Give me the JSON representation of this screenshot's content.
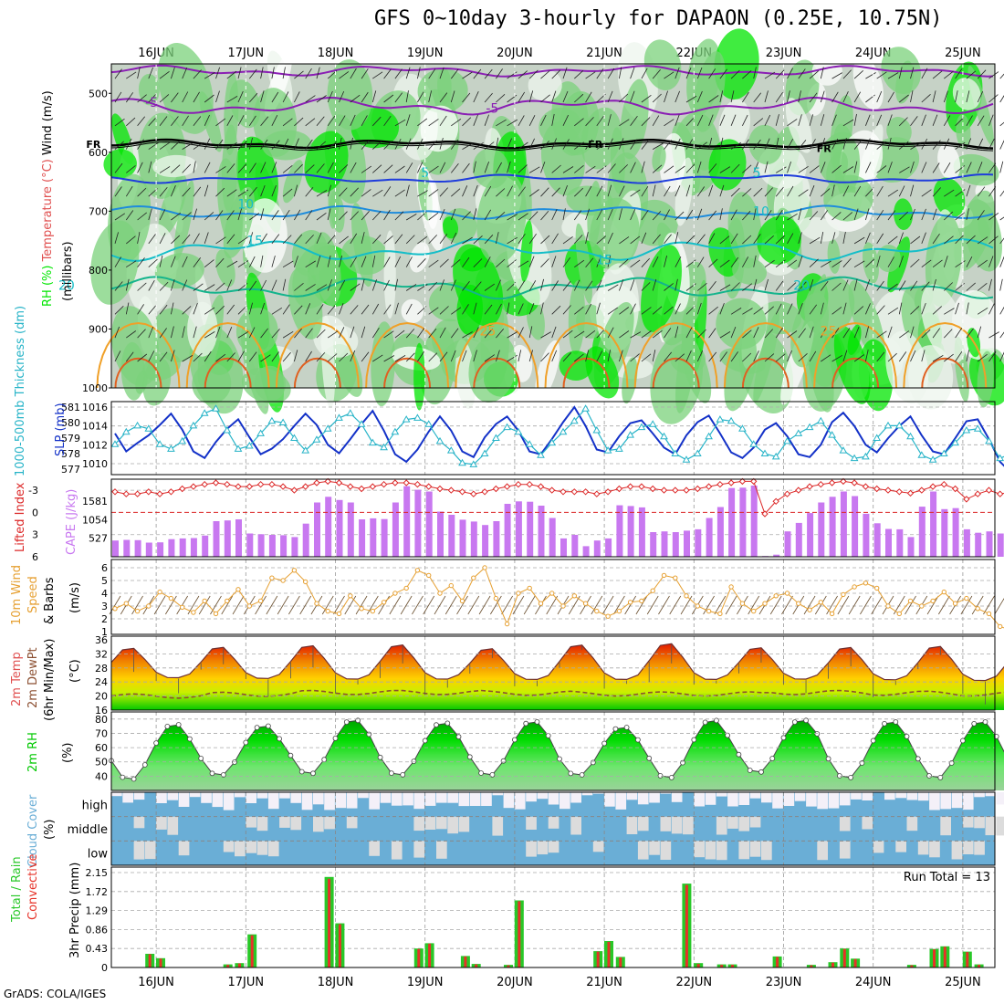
{
  "title": "GFS 0~10day 3-hourly for DAPAON (0.25E, 10.75N)",
  "credit": "GrADS: COLA/IGES",
  "colors": {
    "rh_dark": "#00e600",
    "rh_mid": "#7bd27b",
    "rh_light": "#c6d2c6",
    "rh_pale": "#eef5ee",
    "temp_purple": "#8a1eb4",
    "temp_blue": "#1e3cdc",
    "temp_lightblue": "#1e8cdc",
    "temp_cyan": "#14bec8",
    "temp_teal": "#14b48c",
    "temp_orange": "#f0a028",
    "slp": "#1432c8",
    "thickness": "#28b4c8",
    "lifted": "#dc2828",
    "cape": "#c878f0",
    "wind_speed": "#e6a032",
    "temp_band": "#f05a00",
    "dew": "#8c5032",
    "rh_fill": "#00c800",
    "cloud": "#6aaed6",
    "cloud_bg": "#dcdcdc",
    "precip_total": "#28c828",
    "precip_conv": "#e63228"
  },
  "chart_data": [
    {
      "panel": "vertical-profile",
      "type": "heatmap",
      "ylabel_parts": [
        "RH (%)",
        "Temperature (°C)",
        "Wind (m/s)"
      ],
      "ylabel_units": "(millibars)",
      "y_ticks": [
        "500",
        "600",
        "700",
        "800",
        "900",
        "1000"
      ],
      "contour_labels": [
        {
          "text": "-5",
          "day": 15.95,
          "p": 515
        },
        {
          "text": "-5",
          "day": 19.75,
          "p": 525
        },
        {
          "text": "FR",
          "day": 15.3,
          "p": 585
        },
        {
          "text": "FR",
          "day": 20.9,
          "p": 585
        },
        {
          "text": "FR",
          "day": 23.45,
          "p": 592
        },
        {
          "text": "5",
          "day": 19.0,
          "p": 634
        },
        {
          "text": "5",
          "day": 22.7,
          "p": 634
        },
        {
          "text": "10",
          "day": 17.0,
          "p": 688
        },
        {
          "text": "10",
          "day": 22.75,
          "p": 700
        },
        {
          "text": "15",
          "day": 17.1,
          "p": 750
        },
        {
          "text": "15",
          "day": 21.0,
          "p": 782
        },
        {
          "text": "20",
          "day": 15.0,
          "p": 826
        },
        {
          "text": "20",
          "day": 23.2,
          "p": 826
        },
        {
          "text": "25",
          "day": 19.7,
          "p": 903
        },
        {
          "text": "25",
          "day": 23.5,
          "p": 903
        }
      ]
    },
    {
      "panel": "slp-thickness",
      "type": "line",
      "ylabel_left": "1000-500mb Thickness (dm)",
      "ylabel_right": "SLP (mb)",
      "y_ticks_left": [
        "581",
        "580",
        "579",
        "578",
        "577"
      ],
      "y_ticks_right": [
        "1016",
        "1014",
        "1012",
        "1010"
      ],
      "series": [
        {
          "name": "SLP (mb)",
          "values": [
            1013.2,
            1011.3,
            1012.2,
            1013.0,
            1014.1,
            1015.3,
            1013.6,
            1011.3,
            1010.6,
            1012.3,
            1013.7,
            1014.7,
            1012.8,
            1011.0,
            1011.6,
            1012.6,
            1014.0,
            1015.3,
            1014.1,
            1012.0,
            1011.1,
            1012.6,
            1014.2,
            1015.6,
            1013.5,
            1011.0,
            1010.2,
            1011.5,
            1013.4,
            1015.0,
            1013.5,
            1011.3,
            1010.7,
            1012.8,
            1014.2,
            1015.0,
            1013.5,
            1011.3,
            1011.0,
            1012.6,
            1014.4,
            1016.0,
            1014.0,
            1011.5,
            1011.2,
            1012.9,
            1014.3,
            1014.6,
            1013.2,
            1011.7,
            1011.0,
            1013.0,
            1014.4,
            1015.1,
            1013.2,
            1011.2,
            1010.6,
            1011.7,
            1013.6,
            1014.3,
            1012.9,
            1011.0,
            1010.7,
            1012.0,
            1014.4,
            1015.4,
            1014.0,
            1012.0,
            1011.2,
            1012.7,
            1014.0,
            1015.0,
            1013.0,
            1011.3,
            1011.0,
            1012.7,
            1014.5,
            1014.7,
            1012.6,
            1010.2,
            1009.0,
            1010.4,
            1011.8
          ]
        },
        {
          "name": "1000-500mb Thickness (dm)",
          "values": [
            578.6,
            579.4,
            579.8,
            579.6,
            578.6,
            578.3,
            578.8,
            579.8,
            580.6,
            580.9,
            579.5,
            578.3,
            578.5,
            579.3,
            580.1,
            580.0,
            579.0,
            578.2,
            578.9,
            579.6,
            580.3,
            580.6,
            579.9,
            578.7,
            578.4,
            579.4,
            580.2,
            580.3,
            579.9,
            578.8,
            578.2,
            577.4,
            577.3,
            578.0,
            579.0,
            579.7,
            579.4,
            578.6,
            577.9,
            578.7,
            579.4,
            580.1,
            580.9,
            579.5,
            578.2,
            578.3,
            579.2,
            579.7,
            579.9,
            579.1,
            578.0,
            577.6,
            578.0,
            579.1,
            580.2,
            580.1,
            579.6,
            578.6,
            578.0,
            577.8,
            578.8,
            579.3,
            579.7,
            580.1,
            579.2,
            578.2,
            577.7,
            577.8,
            579.0,
            579.8,
            579.8,
            579.1,
            577.9,
            577.6,
            578.0,
            578.7,
            579.5,
            579.6,
            578.8,
            577.7,
            578.0,
            577.7,
            577.3
          ]
        }
      ]
    },
    {
      "panel": "cape-lifted-index",
      "type": "bar",
      "ylabel_left": "Lifted Index",
      "ylabel_right": "CAPE (J/kg)",
      "y_ticks_left": [
        "-3",
        "0",
        "3",
        "6"
      ],
      "y_ticks_right": [
        "1581",
        "1054",
        "527"
      ],
      "series": [
        {
          "name": "CAPE (J/kg)",
          "values": [
            460,
            480,
            470,
            400,
            410,
            500,
            520,
            530,
            600,
            1010,
            1030,
            1060,
            660,
            640,
            620,
            610,
            560,
            940,
            1540,
            1700,
            1610,
            1540,
            1060,
            1090,
            1070,
            1540,
            2000,
            1900,
            1850,
            1280,
            1190,
            1050,
            1000,
            900,
            1010,
            1500,
            1570,
            1560,
            1450,
            1100,
            520,
            620,
            300,
            460,
            520,
            1460,
            1440,
            1400,
            700,
            720,
            700,
            740,
            780,
            1100,
            1410,
            1950,
            1960,
            2020,
            20,
            60,
            720,
            960,
            1240,
            1540,
            1700,
            1850,
            1720,
            1220,
            950,
            790,
            780,
            560,
            1420,
            1850,
            1350,
            1380,
            780,
            680,
            720,
            660,
            620,
            1150,
            720,
            530,
            320,
            250
          ]
        },
        {
          "name": "Lifted Index",
          "values": [
            -2.8,
            -2.5,
            -2.5,
            -2.8,
            -2.5,
            -2.8,
            -3.2,
            -3.5,
            -3.8,
            -4.0,
            -3.8,
            -3.5,
            -3.5,
            -3.8,
            -3.8,
            -3.5,
            -3.0,
            -3.5,
            -4.0,
            -4.2,
            -4.0,
            -3.5,
            -3.2,
            -3.5,
            -3.8,
            -4.0,
            -4.0,
            -3.8,
            -3.5,
            -3.2,
            -3.0,
            -2.8,
            -2.5,
            -2.8,
            -3.2,
            -3.5,
            -3.8,
            -3.8,
            -3.5,
            -3.0,
            -2.8,
            -2.8,
            -2.8,
            -2.5,
            -2.8,
            -3.2,
            -3.5,
            -3.5,
            -3.2,
            -3.0,
            -3.0,
            -3.0,
            -3.2,
            -3.5,
            -3.8,
            -4.0,
            -4.2,
            -4.2,
            0.2,
            -1.5,
            -2.5,
            -3.0,
            -3.5,
            -3.8,
            -4.0,
            -4.2,
            -4.0,
            -3.5,
            -3.2,
            -3.0,
            -2.8,
            -2.6,
            -3.0,
            -3.5,
            -3.8,
            -3.2,
            -1.8,
            -2.5,
            -3.0,
            -2.5,
            -2.8,
            -3.0,
            -3.2,
            -2.8,
            -2.5,
            -2.8
          ]
        }
      ]
    },
    {
      "panel": "10m-wind",
      "type": "line",
      "ylabel": "10m Wind Speed & Barbs (m/s)",
      "y_ticks": [
        "6",
        "5",
        "4",
        "3",
        "2",
        "1"
      ],
      "series": [
        {
          "name": "10m Wind Speed",
          "values": [
            2.8,
            3.2,
            2.6,
            3.0,
            4.1,
            3.6,
            2.9,
            2.5,
            3.4,
            2.4,
            3.4,
            4.3,
            3.0,
            3.4,
            5.2,
            5.0,
            5.8,
            4.9,
            3.2,
            2.6,
            2.4,
            3.8,
            2.8,
            2.6,
            3.3,
            4.0,
            4.4,
            5.8,
            5.4,
            4.0,
            4.6,
            3.4,
            5.2,
            6.0,
            3.6,
            1.6,
            4.0,
            4.4,
            3.2,
            4.0,
            3.0,
            3.8,
            3.2,
            2.6,
            2.2,
            2.6,
            3.3,
            3.4,
            4.2,
            5.4,
            5.2,
            3.8,
            3.0,
            2.6,
            2.4,
            4.5,
            3.2,
            2.6,
            3.2,
            3.8,
            4.0,
            3.2,
            2.7,
            3.3,
            2.4,
            3.9,
            4.5,
            4.8,
            4.4,
            3.0,
            2.4,
            3.4,
            3.0,
            3.4,
            4.1,
            3.2,
            3.6,
            2.8,
            2.4,
            1.4,
            1.1,
            1.2,
            2.1,
            2.8,
            3.6,
            3.9
          ]
        }
      ]
    },
    {
      "panel": "2m-temp",
      "type": "area",
      "ylabel": "2m Temp 2m DewPt (6hr Min/Max) (°C)",
      "y_ticks": [
        "36",
        "32",
        "28",
        "24",
        "20",
        "16"
      ],
      "daily_max": [
        33.9,
        34.2,
        34.7,
        34.9,
        33.8,
        34.9,
        35.3,
        34.1,
        34.2,
        34.5
      ],
      "daily_min": [
        25.2,
        25.0,
        24.8,
        24.8,
        24.7,
        24.7,
        24.7,
        24.8,
        24.6,
        24.4
      ],
      "dewpoint_mean": [
        20.0,
        20.5,
        21.0,
        21.0,
        20.8,
        20.6,
        20.6,
        21.0,
        20.8,
        20.6
      ]
    },
    {
      "panel": "2m-rh",
      "type": "area",
      "ylabel": "2m RH (%)",
      "y_ticks": [
        "80",
        "70",
        "60",
        "50",
        "40"
      ],
      "daily_max": [
        77,
        76,
        80,
        78,
        79,
        75,
        80,
        80,
        79,
        79
      ],
      "daily_min": [
        37,
        40,
        41,
        40,
        40,
        40,
        38,
        42,
        38,
        38
      ]
    },
    {
      "panel": "cloud-cover",
      "type": "heatmap",
      "ylabel": "Cloud Cover (%)",
      "layers": [
        "high",
        "middle",
        "low"
      ]
    },
    {
      "panel": "precip",
      "type": "bar",
      "ylabel_parts": [
        "Total / Rain",
        "Convective"
      ],
      "ylabel_units": "3hr Precip (mm)",
      "y_ticks": [
        "2.15",
        "1.72",
        "1.29",
        "0.86",
        "0.43",
        "0"
      ],
      "run_total": "Run Total = 13",
      "bars": [
        {
          "day": 15.93,
          "total": 0.31,
          "conv": 0.3
        },
        {
          "day": 16.05,
          "total": 0.21,
          "conv": 0.2
        },
        {
          "day": 16.8,
          "total": 0.07,
          "conv": 0.06
        },
        {
          "day": 16.93,
          "total": 0.1,
          "conv": 0.09
        },
        {
          "day": 17.07,
          "total": 0.75,
          "conv": 0.73
        },
        {
          "day": 17.93,
          "total": 2.05,
          "conv": 2.01
        },
        {
          "day": 18.05,
          "total": 1.0,
          "conv": 0.98
        },
        {
          "day": 18.93,
          "total": 0.43,
          "conv": 0.42
        },
        {
          "day": 19.05,
          "total": 0.55,
          "conv": 0.54
        },
        {
          "day": 19.45,
          "total": 0.26,
          "conv": 0.25
        },
        {
          "day": 19.57,
          "total": 0.08,
          "conv": 0.07
        },
        {
          "day": 19.93,
          "total": 0.06,
          "conv": 0.05
        },
        {
          "day": 20.05,
          "total": 1.52,
          "conv": 1.5
        },
        {
          "day": 20.93,
          "total": 0.37,
          "conv": 0.36
        },
        {
          "day": 21.05,
          "total": 0.6,
          "conv": 0.58
        },
        {
          "day": 21.18,
          "total": 0.24,
          "conv": 0.23
        },
        {
          "day": 21.92,
          "total": 1.9,
          "conv": 1.87
        },
        {
          "day": 22.05,
          "total": 0.1,
          "conv": 0.08
        },
        {
          "day": 22.31,
          "total": 0.07,
          "conv": 0.06
        },
        {
          "day": 22.43,
          "total": 0.07,
          "conv": 0.06
        },
        {
          "day": 22.93,
          "total": 0.25,
          "conv": 0.24
        },
        {
          "day": 23.31,
          "total": 0.06,
          "conv": 0.05
        },
        {
          "day": 23.55,
          "total": 0.12,
          "conv": 0.11
        },
        {
          "day": 23.68,
          "total": 0.43,
          "conv": 0.42
        },
        {
          "day": 23.8,
          "total": 0.2,
          "conv": 0.19
        },
        {
          "day": 24.43,
          "total": 0.06,
          "conv": 0.05
        },
        {
          "day": 24.68,
          "total": 0.42,
          "conv": 0.41
        },
        {
          "day": 24.8,
          "total": 0.48,
          "conv": 0.47
        },
        {
          "day": 25.05,
          "total": 0.36,
          "conv": 0.35
        },
        {
          "day": 25.18,
          "total": 0.07,
          "conv": 0.06
        }
      ]
    }
  ],
  "x_axis": {
    "day_labels": [
      "16JUN",
      "17JUN",
      "18JUN",
      "19JUN",
      "20JUN",
      "21JUN",
      "22JUN",
      "23JUN",
      "24JUN",
      "25JUN"
    ]
  }
}
